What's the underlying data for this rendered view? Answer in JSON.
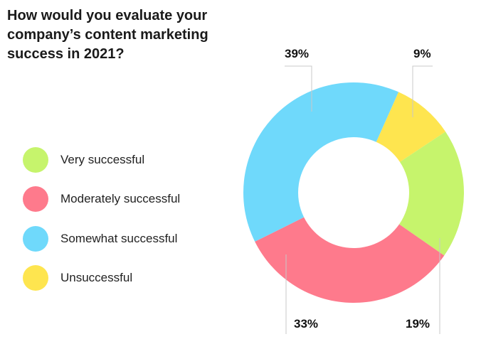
{
  "chart_data": {
    "type": "pie",
    "donut": true,
    "title": "How would you evaluate your company’s content marketing success in 2021?",
    "legend_position": "left",
    "categories": [
      "Very successful",
      "Moderately successful",
      "Somewhat successful",
      "Unsuccessful"
    ],
    "values": [
      19,
      33,
      39,
      9
    ],
    "labels": [
      "19%",
      "33%",
      "39%",
      "9%"
    ],
    "colors": [
      "#c6f46c",
      "#fe7a8c",
      "#6fd9fb",
      "#fee54f"
    ],
    "clockwise_order": [
      "Unsuccessful",
      "Very successful",
      "Moderately successful",
      "Somewhat successful"
    ]
  }
}
